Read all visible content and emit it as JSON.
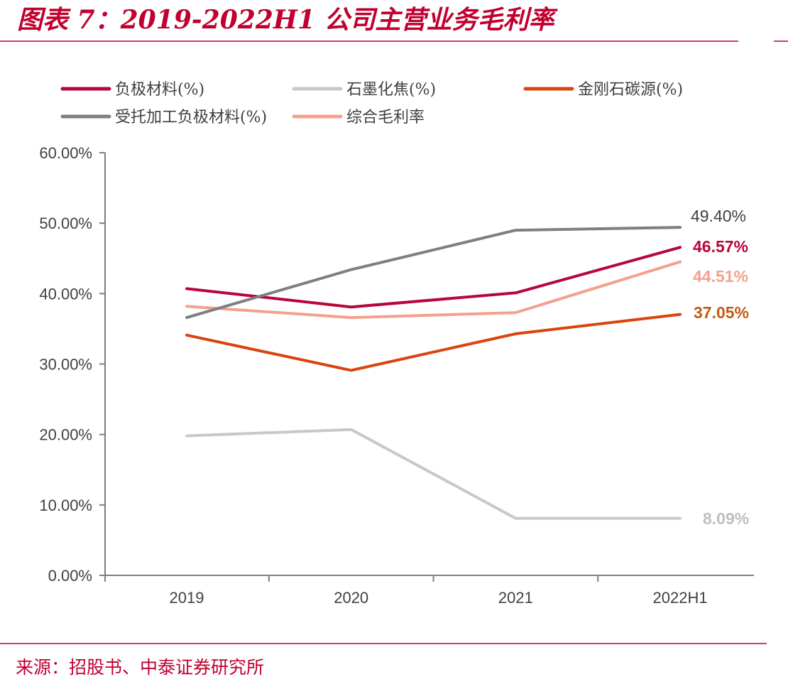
{
  "header": {
    "title": "图表 7：2019-2022H1 公司主营业务毛利率"
  },
  "footer": {
    "source": "来源：招股书、中泰证券研究所"
  },
  "colors": {
    "accent": "#c0002f",
    "axis": "#7f7f7f"
  },
  "chart_data": {
    "type": "line",
    "title": "",
    "xlabel": "",
    "ylabel": "",
    "categories": [
      "2019",
      "2020",
      "2021",
      "2022H1"
    ],
    "ylim": [
      0,
      60
    ],
    "yticks": [
      0,
      10,
      20,
      30,
      40,
      50,
      60
    ],
    "ytick_labels": [
      "0.00%",
      "10.00%",
      "20.00%",
      "30.00%",
      "40.00%",
      "50.00%",
      "60.00%"
    ],
    "grid": false,
    "legend_position": "top",
    "series": [
      {
        "name": "负极材料(%)",
        "color": "#b8063a",
        "values": [
          40.7,
          38.1,
          40.1,
          46.57
        ],
        "end_label": "46.57%",
        "end_label_color": "#b8063a",
        "end_label_bold": true
      },
      {
        "name": "石墨化焦(%)",
        "color": "#c8c8c8",
        "values": [
          19.8,
          20.7,
          8.1,
          8.09
        ],
        "end_label": "8.09%",
        "end_label_color": "#bfbfbf",
        "end_label_bold": true
      },
      {
        "name": "金刚石碳源(%)",
        "color": "#d9440f",
        "values": [
          34.1,
          29.1,
          34.3,
          37.05
        ],
        "end_label": "37.05%",
        "end_label_color": "#c55a11",
        "end_label_bold": true
      },
      {
        "name": "受托加工负极材料(%)",
        "color": "#7f7f7f",
        "values": [
          36.6,
          43.4,
          49.0,
          49.4
        ],
        "end_label": "49.40%",
        "end_label_color": "#404040",
        "end_label_bold": false
      },
      {
        "name": "综合毛利率",
        "color": "#f4a08c",
        "values": [
          38.2,
          36.6,
          37.3,
          44.51
        ],
        "end_label": "44.51%",
        "end_label_color": "#f4a08c",
        "end_label_bold": true
      }
    ]
  }
}
